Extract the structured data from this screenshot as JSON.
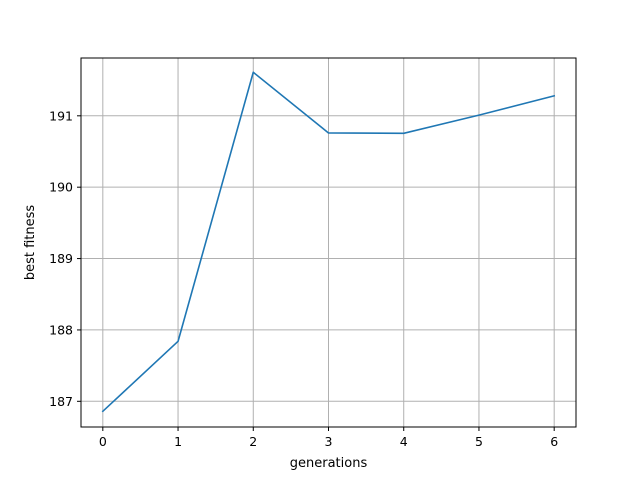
{
  "chart_data": {
    "type": "line",
    "title": "",
    "xlabel": "generations",
    "ylabel": "best fitness",
    "x": [
      0,
      1,
      2,
      3,
      4,
      5,
      6
    ],
    "series": [
      {
        "values": [
          186.86,
          187.84,
          191.61,
          190.76,
          190.755,
          191.01,
          191.28
        ],
        "color": "#1f77b4"
      }
    ],
    "xlim": [
      -0.29,
      6.29
    ],
    "ylim": [
      186.64,
      191.81
    ],
    "xticks": [
      0,
      1,
      2,
      3,
      4,
      5,
      6
    ],
    "yticks": [
      187,
      188,
      189,
      190,
      191
    ],
    "xtick_labels": [
      "0",
      "1",
      "2",
      "3",
      "4",
      "5",
      "6"
    ],
    "ytick_labels": [
      "187",
      "188",
      "189",
      "190",
      "191"
    ],
    "grid": true,
    "grid_color": "#b0b0b0",
    "legend": "none"
  }
}
